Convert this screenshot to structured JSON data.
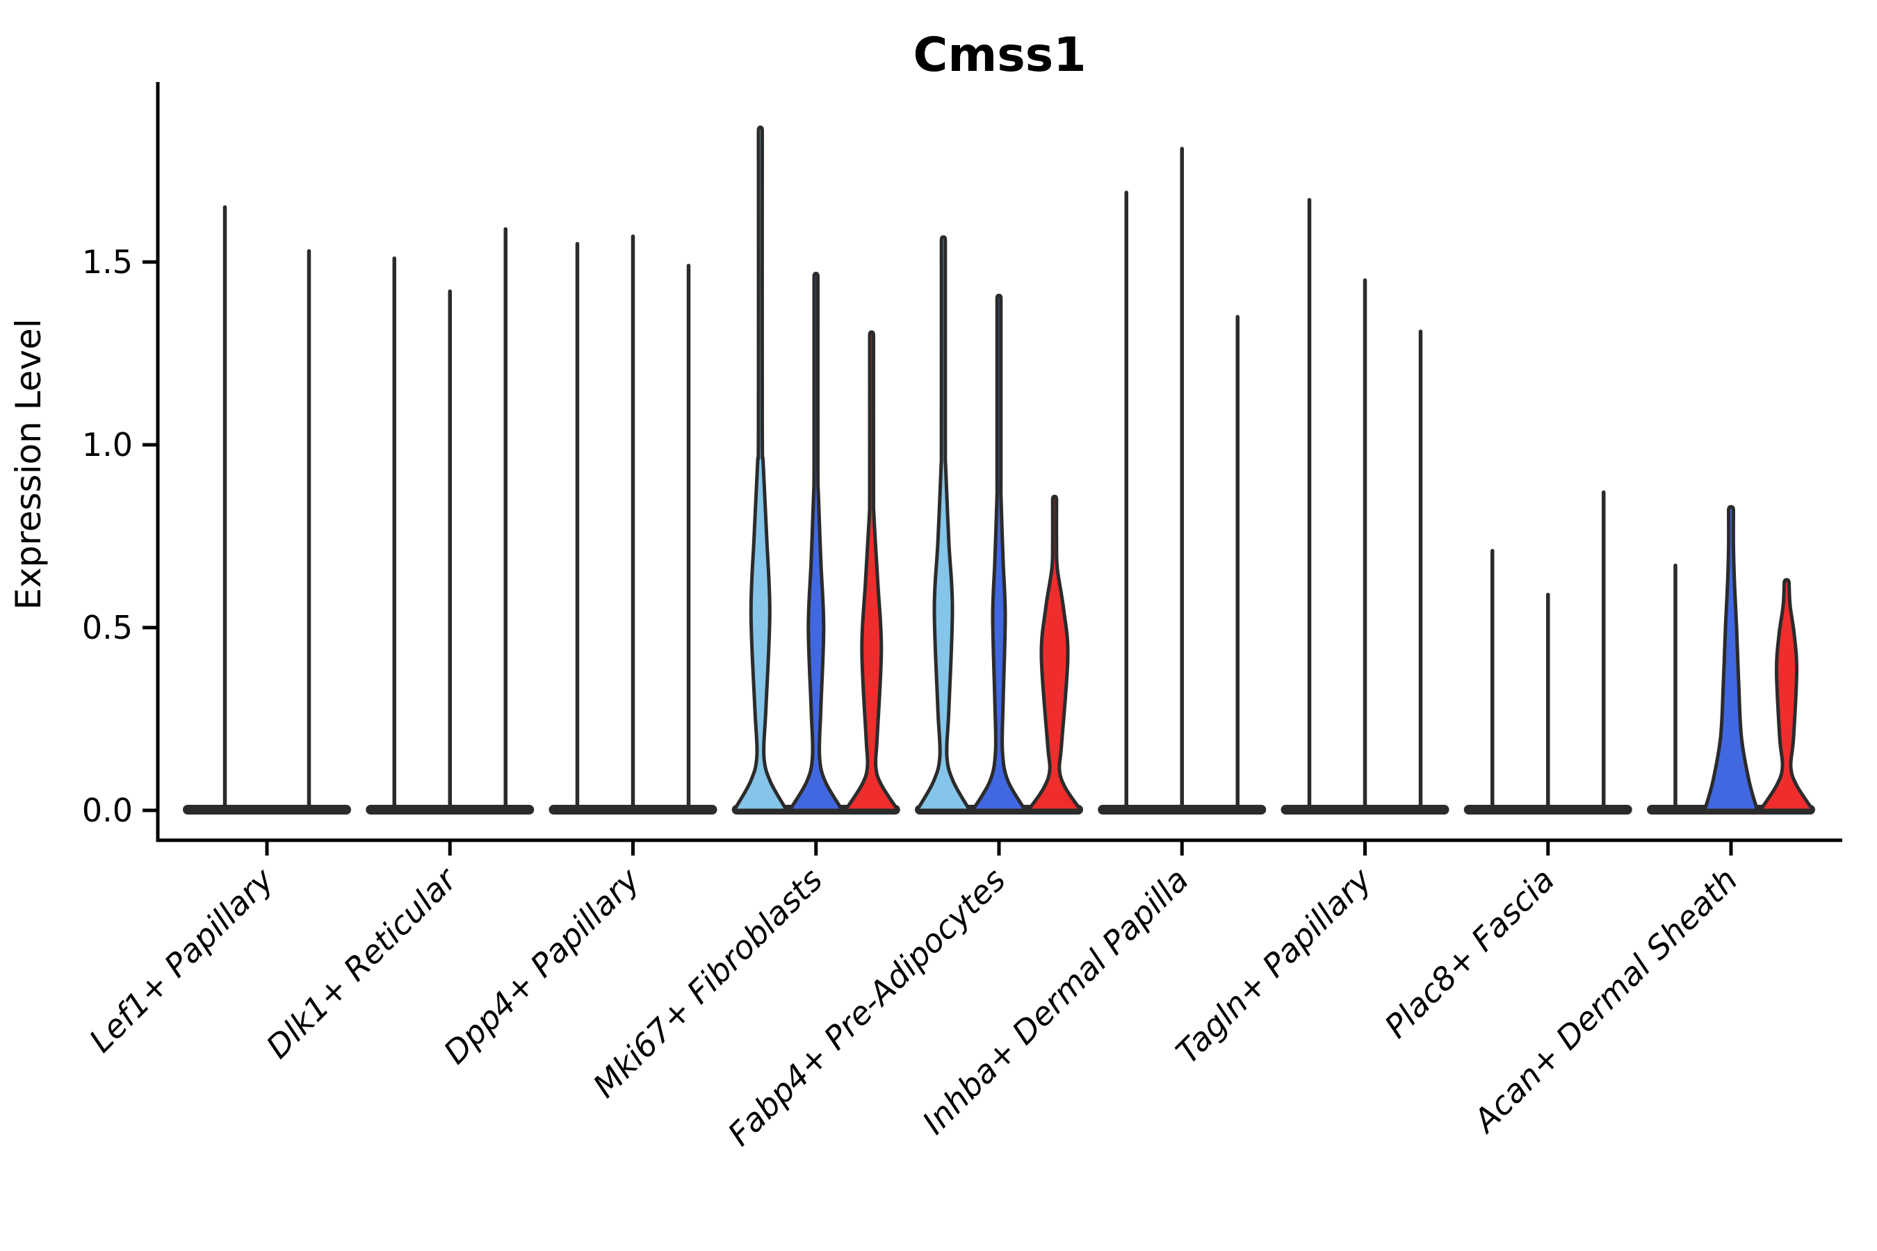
{
  "title": "Cmss1",
  "axis": {
    "ylabel": "Expression Level",
    "ytick_labels": [
      "0.0",
      "0.5",
      "1.0",
      "1.5"
    ]
  },
  "chart_data": {
    "type": "violin",
    "title": "Cmss1",
    "ylabel": "Expression Level",
    "xlabel": "",
    "ylim": [
      -0.08,
      2.0
    ],
    "yticks": [
      0.0,
      0.5,
      1.0,
      1.5
    ],
    "ytick_labels": [
      "0.0",
      "0.5",
      "1.0",
      "1.5"
    ],
    "grid": false,
    "legend": "none",
    "split_colors": {
      "lightblue": "#85C5E9",
      "darkblue": "#4168E1",
      "red": "#EF2D2D"
    },
    "outline_color": "#2b2b2b",
    "categories": [
      "Lef1+ Papillary",
      "Dlk1+ Reticular",
      "Dpp4+ Papillary",
      "Mki67+ Fibroblasts",
      "Fabp4+ Pre-Adipocytes",
      "Inhba+ Dermal Papilla",
      "Tagln+ Papillary",
      "Plac8+ Fascia",
      "Acan+ Dermal Sheath"
    ],
    "groups": [
      {
        "label": "Lef1+ Papillary",
        "violins": [
          {
            "peak": 1.65,
            "fill": "none"
          },
          {
            "peak": 1.53,
            "fill": "none"
          }
        ]
      },
      {
        "label": "Dlk1+ Reticular",
        "violins": [
          {
            "peak": 1.51,
            "fill": "none"
          },
          {
            "peak": 1.42,
            "fill": "none"
          },
          {
            "peak": 1.59,
            "fill": "none"
          }
        ]
      },
      {
        "label": "Dpp4+ Papillary",
        "violins": [
          {
            "peak": 1.55,
            "fill": "none"
          },
          {
            "peak": 1.57,
            "fill": "none"
          },
          {
            "peak": 1.49,
            "fill": "none"
          }
        ]
      },
      {
        "label": "Mki67+ Fibroblasts",
        "violins": [
          {
            "peak": 1.86,
            "fill": "lightblue",
            "profile": [
              [
                0,
                38
              ],
              [
                0.08,
                14
              ],
              [
                0.15,
                5
              ],
              [
                0.28,
                8
              ],
              [
                0.54,
                13.5
              ],
              [
                0.75,
                9
              ],
              [
                0.95,
                4
              ],
              [
                1.05,
                2.8
              ],
              [
                1.86,
                2.8
              ]
            ]
          },
          {
            "peak": 1.46,
            "fill": "darkblue",
            "profile": [
              [
                0,
                38
              ],
              [
                0.08,
                13
              ],
              [
                0.15,
                5
              ],
              [
                0.28,
                7
              ],
              [
                0.5,
                11
              ],
              [
                0.68,
                7
              ],
              [
                0.86,
                3.5
              ],
              [
                0.95,
                2.8
              ],
              [
                1.46,
                2.8
              ]
            ]
          },
          {
            "peak": 1.3,
            "fill": "red",
            "profile": [
              [
                0,
                38
              ],
              [
                0.07,
                14
              ],
              [
                0.12,
                6
              ],
              [
                0.2,
                8
              ],
              [
                0.44,
                14
              ],
              [
                0.62,
                9
              ],
              [
                0.8,
                3.5
              ],
              [
                0.88,
                2.8
              ],
              [
                1.3,
                2.8
              ]
            ]
          }
        ]
      },
      {
        "label": "Fabp4+ Pre-Adipocytes",
        "violins": [
          {
            "peak": 1.56,
            "fill": "lightblue",
            "profile": [
              [
                0,
                38
              ],
              [
                0.08,
                14
              ],
              [
                0.15,
                5
              ],
              [
                0.28,
                8
              ],
              [
                0.55,
                13
              ],
              [
                0.73,
                8
              ],
              [
                0.93,
                3.5
              ],
              [
                1.02,
                2.8
              ],
              [
                1.56,
                2.8
              ]
            ]
          },
          {
            "peak": 1.4,
            "fill": "darkblue",
            "profile": [
              [
                0,
                38
              ],
              [
                0.08,
                13
              ],
              [
                0.16,
                5
              ],
              [
                0.3,
                6
              ],
              [
                0.53,
                9
              ],
              [
                0.68,
                6
              ],
              [
                0.85,
                3
              ],
              [
                0.93,
                2.8
              ],
              [
                1.4,
                2.8
              ]
            ]
          },
          {
            "peak": 0.85,
            "fill": "red",
            "profile": [
              [
                0,
                38
              ],
              [
                0.06,
                16
              ],
              [
                0.11,
                7
              ],
              [
                0.18,
                10
              ],
              [
                0.42,
                19
              ],
              [
                0.55,
                13
              ],
              [
                0.66,
                4
              ],
              [
                0.73,
                2.8
              ],
              [
                0.85,
                2.8
              ]
            ]
          }
        ]
      },
      {
        "label": "Inhba+ Dermal Papilla",
        "violins": [
          {
            "peak": 1.69,
            "fill": "none"
          },
          {
            "peak": 1.81,
            "fill": "none"
          },
          {
            "peak": 1.35,
            "fill": "none"
          }
        ]
      },
      {
        "label": "Tagln+ Papillary",
        "violins": [
          {
            "peak": 1.67,
            "fill": "none"
          },
          {
            "peak": 1.45,
            "fill": "none"
          },
          {
            "peak": 1.31,
            "fill": "none"
          }
        ]
      },
      {
        "label": "Plac8+ Fascia",
        "violins": [
          {
            "peak": 0.71,
            "fill": "none"
          },
          {
            "peak": 0.59,
            "fill": "none"
          },
          {
            "peak": 0.87,
            "fill": "none"
          }
        ]
      },
      {
        "label": "Acan+ Dermal Sheath",
        "violins": [
          {
            "peak": 0.67,
            "fill": "none"
          },
          {
            "peak": 0.82,
            "fill": "darkblue",
            "profile": [
              [
                0,
                38
              ],
              [
                0.08,
                26
              ],
              [
                0.2,
                15
              ],
              [
                0.35,
                11
              ],
              [
                0.5,
                8
              ],
              [
                0.62,
                5
              ],
              [
                0.72,
                3.5
              ],
              [
                0.82,
                3.5
              ]
            ]
          },
          {
            "peak": 0.62,
            "fill": "red",
            "profile": [
              [
                0,
                38
              ],
              [
                0.07,
                14
              ],
              [
                0.12,
                6
              ],
              [
                0.2,
                10
              ],
              [
                0.38,
                14.5
              ],
              [
                0.48,
                11
              ],
              [
                0.56,
                5
              ],
              [
                0.62,
                3.5
              ]
            ]
          }
        ]
      }
    ]
  }
}
